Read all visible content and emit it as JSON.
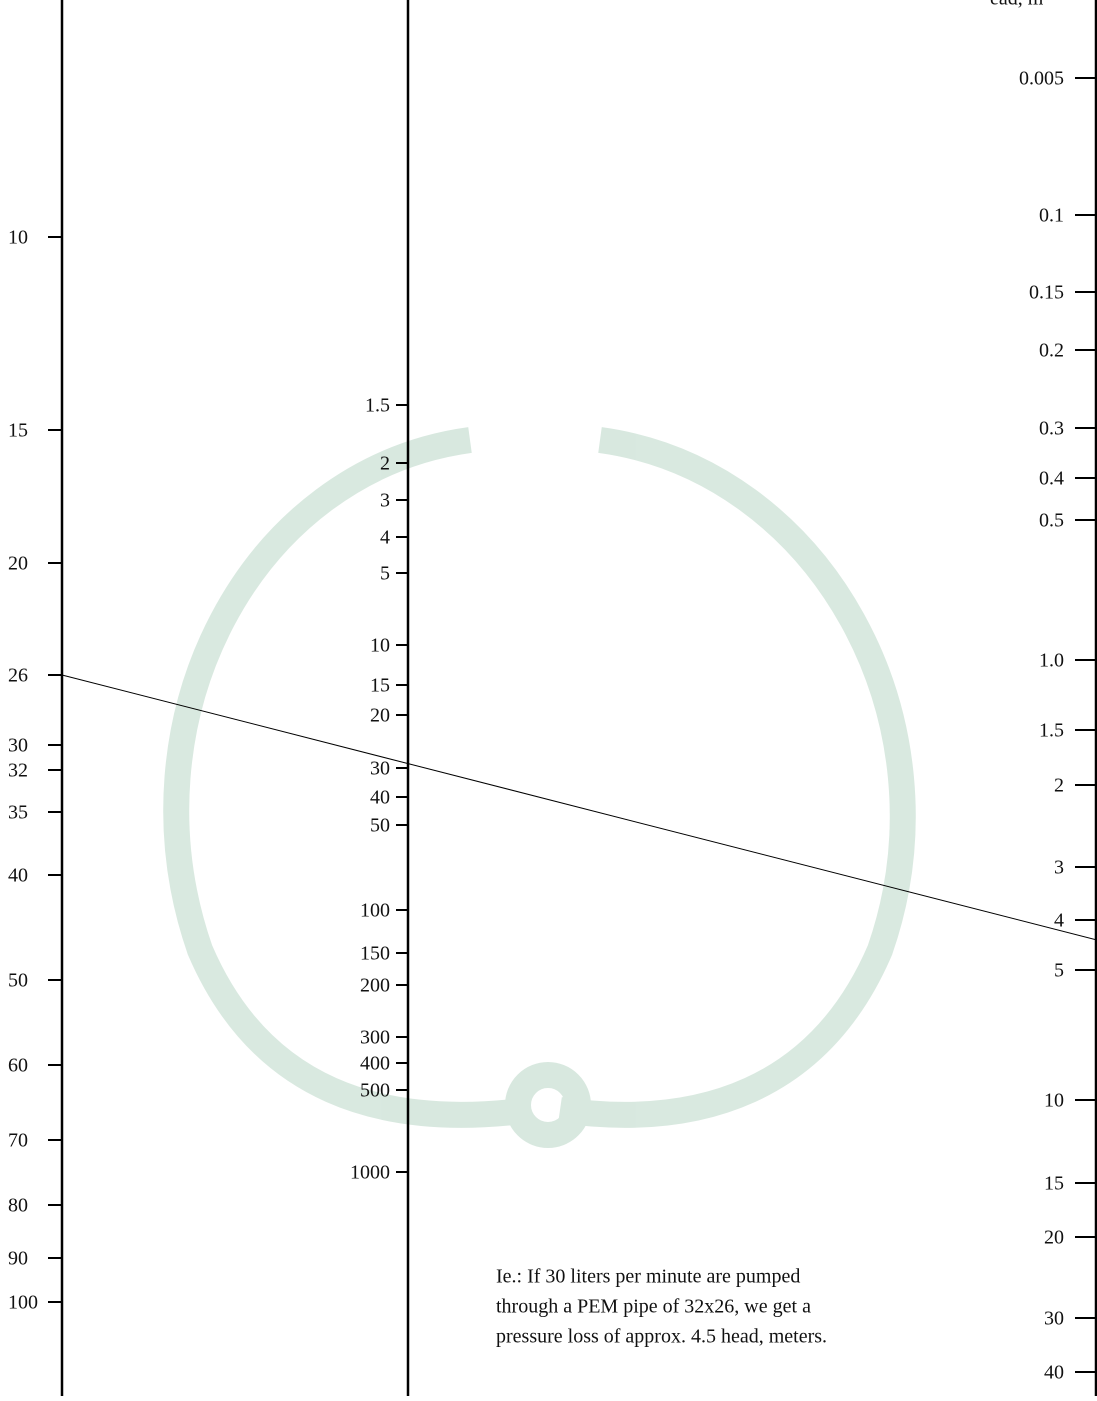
{
  "axis_header": "ead, m",
  "scales": [
    {
      "ticks": [
        "10",
        "15",
        "20",
        "26",
        "30",
        "32",
        "35",
        "40",
        "50",
        "60",
        "70",
        "80",
        "90",
        "100"
      ]
    },
    {
      "ticks": [
        "1.5",
        "2",
        "3",
        "4",
        "5",
        "10",
        "15",
        "20",
        "30",
        "40",
        "50",
        "100",
        "150",
        "200",
        "300",
        "400",
        "500",
        "1000"
      ]
    },
    {
      "ticks": [
        "0.005",
        "0.1",
        "0.15",
        "0.2",
        "0.3",
        "0.4",
        "0.5",
        "1.0",
        "1.5",
        "2",
        "3",
        "4",
        "5",
        "10",
        "15",
        "20",
        "30",
        "40"
      ]
    }
  ],
  "note": {
    "lines": [
      "Ie.: If 30 liters per minute are pumped",
      "through a PEM pipe of 32x26, we get a",
      "pressure loss of approx. 4.5 head, meters."
    ]
  }
}
